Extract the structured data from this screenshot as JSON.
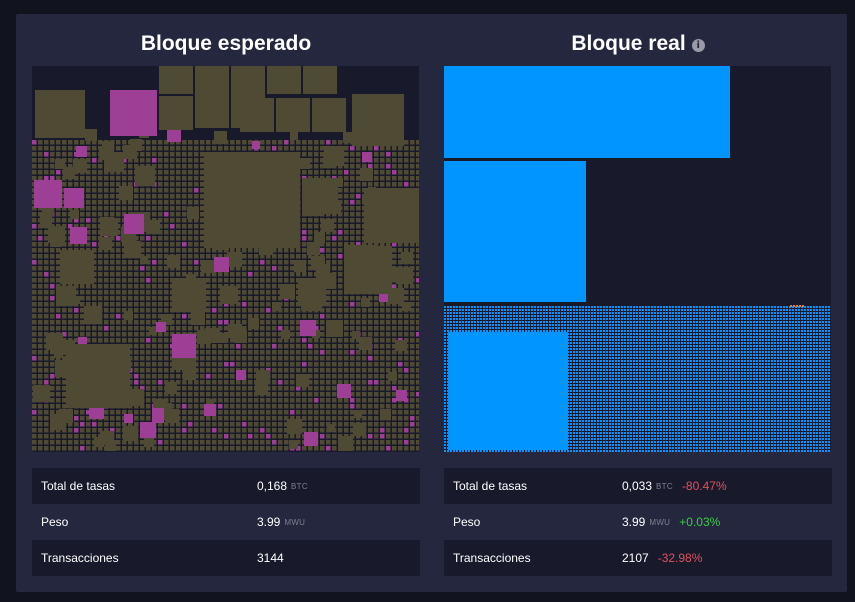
{
  "colors": {
    "page_bg": "#11131f",
    "panel_bg": "#24273e",
    "viz_bg": "#181a2c",
    "expected_tx": "#4f4a34",
    "expected_tx_highlight": "#9e3f96",
    "actual_tx": "#0095ff",
    "negative": "#e0515b",
    "positive": "#3bcc49"
  },
  "expected_block": {
    "title": "Bloque esperado",
    "stats": [
      {
        "label": "Total de tasas",
        "value": "0,168",
        "unit": "BTC"
      },
      {
        "label": "Peso",
        "value": "3.99",
        "unit": "MWU"
      },
      {
        "label": "Transacciones",
        "value": "3144"
      }
    ]
  },
  "actual_block": {
    "title": "Bloque real",
    "info_icon": "info-icon",
    "info_glyph": "i",
    "stats": [
      {
        "label": "Total de tasas",
        "value": "0,033",
        "unit": "BTC",
        "delta": "-80.47%",
        "delta_sign": "negative"
      },
      {
        "label": "Peso",
        "value": "3.99",
        "unit": "MWU",
        "delta": "+0.03%",
        "delta_sign": "positive"
      },
      {
        "label": "Transacciones",
        "value": "2107",
        "delta": "-32.98%",
        "delta_sign": "negative"
      }
    ]
  }
}
